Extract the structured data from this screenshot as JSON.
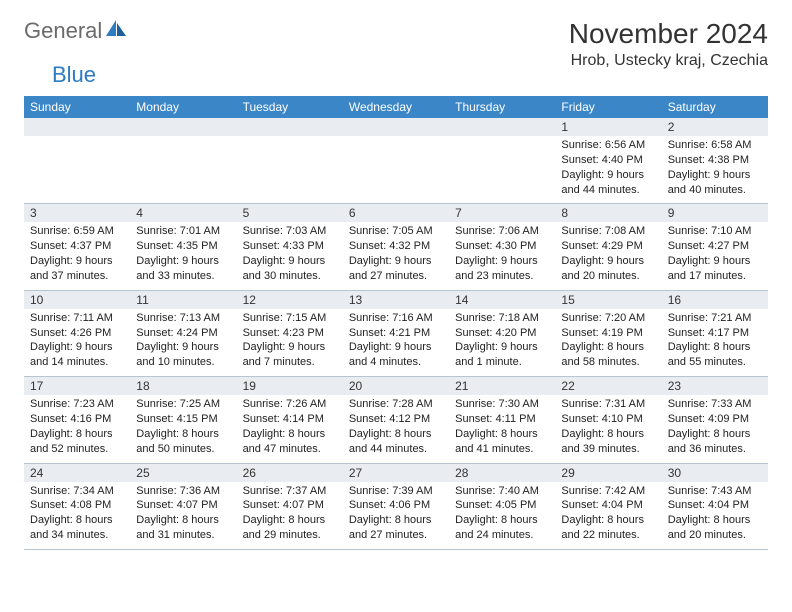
{
  "logo": {
    "text1": "General",
    "text2": "Blue"
  },
  "title": "November 2024",
  "location": "Hrob, Ustecky kraj, Czechia",
  "colors": {
    "header_bg": "#3b86c6",
    "header_text": "#ffffff",
    "daynum_bg": "#e9edf1",
    "border": "#b8c4d0",
    "logo_gray": "#6b6b6b",
    "logo_blue": "#2d7bc0",
    "text": "#333333"
  },
  "day_names": [
    "Sunday",
    "Monday",
    "Tuesday",
    "Wednesday",
    "Thursday",
    "Friday",
    "Saturday"
  ],
  "weeks": [
    [
      {
        "day": "",
        "lines": [
          "",
          "",
          "",
          ""
        ]
      },
      {
        "day": "",
        "lines": [
          "",
          "",
          "",
          ""
        ]
      },
      {
        "day": "",
        "lines": [
          "",
          "",
          "",
          ""
        ]
      },
      {
        "day": "",
        "lines": [
          "",
          "",
          "",
          ""
        ]
      },
      {
        "day": "",
        "lines": [
          "",
          "",
          "",
          ""
        ]
      },
      {
        "day": "1",
        "lines": [
          "Sunrise: 6:56 AM",
          "Sunset: 4:40 PM",
          "Daylight: 9 hours",
          "and 44 minutes."
        ]
      },
      {
        "day": "2",
        "lines": [
          "Sunrise: 6:58 AM",
          "Sunset: 4:38 PM",
          "Daylight: 9 hours",
          "and 40 minutes."
        ]
      }
    ],
    [
      {
        "day": "3",
        "lines": [
          "Sunrise: 6:59 AM",
          "Sunset: 4:37 PM",
          "Daylight: 9 hours",
          "and 37 minutes."
        ]
      },
      {
        "day": "4",
        "lines": [
          "Sunrise: 7:01 AM",
          "Sunset: 4:35 PM",
          "Daylight: 9 hours",
          "and 33 minutes."
        ]
      },
      {
        "day": "5",
        "lines": [
          "Sunrise: 7:03 AM",
          "Sunset: 4:33 PM",
          "Daylight: 9 hours",
          "and 30 minutes."
        ]
      },
      {
        "day": "6",
        "lines": [
          "Sunrise: 7:05 AM",
          "Sunset: 4:32 PM",
          "Daylight: 9 hours",
          "and 27 minutes."
        ]
      },
      {
        "day": "7",
        "lines": [
          "Sunrise: 7:06 AM",
          "Sunset: 4:30 PM",
          "Daylight: 9 hours",
          "and 23 minutes."
        ]
      },
      {
        "day": "8",
        "lines": [
          "Sunrise: 7:08 AM",
          "Sunset: 4:29 PM",
          "Daylight: 9 hours",
          "and 20 minutes."
        ]
      },
      {
        "day": "9",
        "lines": [
          "Sunrise: 7:10 AM",
          "Sunset: 4:27 PM",
          "Daylight: 9 hours",
          "and 17 minutes."
        ]
      }
    ],
    [
      {
        "day": "10",
        "lines": [
          "Sunrise: 7:11 AM",
          "Sunset: 4:26 PM",
          "Daylight: 9 hours",
          "and 14 minutes."
        ]
      },
      {
        "day": "11",
        "lines": [
          "Sunrise: 7:13 AM",
          "Sunset: 4:24 PM",
          "Daylight: 9 hours",
          "and 10 minutes."
        ]
      },
      {
        "day": "12",
        "lines": [
          "Sunrise: 7:15 AM",
          "Sunset: 4:23 PM",
          "Daylight: 9 hours",
          "and 7 minutes."
        ]
      },
      {
        "day": "13",
        "lines": [
          "Sunrise: 7:16 AM",
          "Sunset: 4:21 PM",
          "Daylight: 9 hours",
          "and 4 minutes."
        ]
      },
      {
        "day": "14",
        "lines": [
          "Sunrise: 7:18 AM",
          "Sunset: 4:20 PM",
          "Daylight: 9 hours",
          "and 1 minute."
        ]
      },
      {
        "day": "15",
        "lines": [
          "Sunrise: 7:20 AM",
          "Sunset: 4:19 PM",
          "Daylight: 8 hours",
          "and 58 minutes."
        ]
      },
      {
        "day": "16",
        "lines": [
          "Sunrise: 7:21 AM",
          "Sunset: 4:17 PM",
          "Daylight: 8 hours",
          "and 55 minutes."
        ]
      }
    ],
    [
      {
        "day": "17",
        "lines": [
          "Sunrise: 7:23 AM",
          "Sunset: 4:16 PM",
          "Daylight: 8 hours",
          "and 52 minutes."
        ]
      },
      {
        "day": "18",
        "lines": [
          "Sunrise: 7:25 AM",
          "Sunset: 4:15 PM",
          "Daylight: 8 hours",
          "and 50 minutes."
        ]
      },
      {
        "day": "19",
        "lines": [
          "Sunrise: 7:26 AM",
          "Sunset: 4:14 PM",
          "Daylight: 8 hours",
          "and 47 minutes."
        ]
      },
      {
        "day": "20",
        "lines": [
          "Sunrise: 7:28 AM",
          "Sunset: 4:12 PM",
          "Daylight: 8 hours",
          "and 44 minutes."
        ]
      },
      {
        "day": "21",
        "lines": [
          "Sunrise: 7:30 AM",
          "Sunset: 4:11 PM",
          "Daylight: 8 hours",
          "and 41 minutes."
        ]
      },
      {
        "day": "22",
        "lines": [
          "Sunrise: 7:31 AM",
          "Sunset: 4:10 PM",
          "Daylight: 8 hours",
          "and 39 minutes."
        ]
      },
      {
        "day": "23",
        "lines": [
          "Sunrise: 7:33 AM",
          "Sunset: 4:09 PM",
          "Daylight: 8 hours",
          "and 36 minutes."
        ]
      }
    ],
    [
      {
        "day": "24",
        "lines": [
          "Sunrise: 7:34 AM",
          "Sunset: 4:08 PM",
          "Daylight: 8 hours",
          "and 34 minutes."
        ]
      },
      {
        "day": "25",
        "lines": [
          "Sunrise: 7:36 AM",
          "Sunset: 4:07 PM",
          "Daylight: 8 hours",
          "and 31 minutes."
        ]
      },
      {
        "day": "26",
        "lines": [
          "Sunrise: 7:37 AM",
          "Sunset: 4:07 PM",
          "Daylight: 8 hours",
          "and 29 minutes."
        ]
      },
      {
        "day": "27",
        "lines": [
          "Sunrise: 7:39 AM",
          "Sunset: 4:06 PM",
          "Daylight: 8 hours",
          "and 27 minutes."
        ]
      },
      {
        "day": "28",
        "lines": [
          "Sunrise: 7:40 AM",
          "Sunset: 4:05 PM",
          "Daylight: 8 hours",
          "and 24 minutes."
        ]
      },
      {
        "day": "29",
        "lines": [
          "Sunrise: 7:42 AM",
          "Sunset: 4:04 PM",
          "Daylight: 8 hours",
          "and 22 minutes."
        ]
      },
      {
        "day": "30",
        "lines": [
          "Sunrise: 7:43 AM",
          "Sunset: 4:04 PM",
          "Daylight: 8 hours",
          "and 20 minutes."
        ]
      }
    ]
  ]
}
